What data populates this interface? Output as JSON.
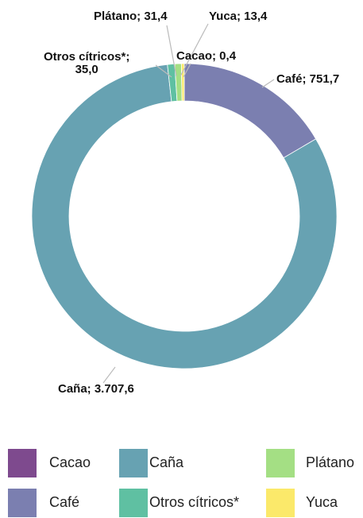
{
  "chart_data": {
    "type": "donut",
    "categories": [
      "Cacao",
      "Café",
      "Caña",
      "Otros cítricos*",
      "Plátano",
      "Yuca"
    ],
    "values": [
      0.4,
      751.7,
      3707.6,
      35.0,
      31.4,
      13.4
    ],
    "value_labels": [
      "Cacao; 0,4",
      "Café; 751,7",
      "Caña; 3.707,6",
      "Otros cítricos*;\n35,0",
      "Plátano; 31,4",
      "Yuca; 13,4"
    ],
    "colors": [
      "#7e4a8e",
      "#7b7fb0",
      "#67a2b2",
      "#5fc0a2",
      "#a4df84",
      "#fbe96a"
    ]
  }
}
